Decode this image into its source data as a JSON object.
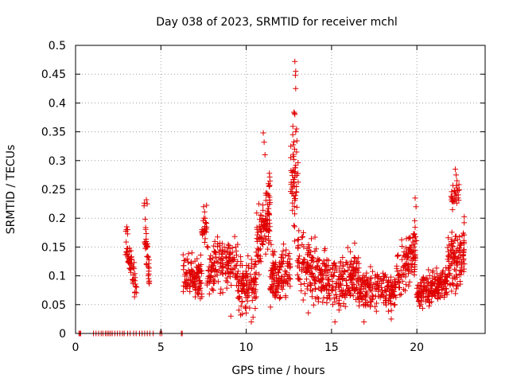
{
  "chart_data": {
    "type": "scatter",
    "title": "Day 038 of 2023, SRMTID for receiver mchl",
    "xlabel": "GPS time / hours",
    "ylabel": "SRMTID / TECUs",
    "xlim": [
      0,
      24
    ],
    "ylim": [
      0,
      0.5
    ],
    "xticks": [
      0,
      5,
      10,
      15,
      20
    ],
    "yticks": [
      0,
      0.05,
      0.1,
      0.15,
      0.2,
      0.25,
      0.3,
      0.35,
      0.4,
      0.45,
      0.5
    ],
    "xtick_labels": [
      "0",
      "5",
      "10",
      "15",
      "20"
    ],
    "ytick_labels": [
      "0",
      "0.05",
      "0.1",
      "0.15",
      "0.2",
      "0.25",
      "0.3",
      "0.35",
      "0.4",
      "0.45",
      "0.5"
    ],
    "grid": true,
    "marker": "+",
    "marker_color": "#e00000",
    "zero_points_x": [
      0.2,
      0.25,
      0.3,
      1.05,
      1.2,
      1.35,
      1.5,
      1.6,
      1.75,
      1.85,
      1.95,
      2.05,
      2.15,
      2.3,
      2.45,
      2.6,
      2.75,
      2.85,
      3.05,
      3.2,
      3.4,
      3.55,
      3.75,
      3.9,
      4.05,
      4.2,
      4.35,
      4.55,
      4.95,
      5.05,
      6.2,
      6.25
    ],
    "segments": [
      {
        "x": [
          2.9,
          3.6
        ],
        "baseline": [
          0.16,
          0.08
        ],
        "spread": 0.025,
        "n": 60
      },
      {
        "x": [
          4.0,
          4.35
        ],
        "baseline": [
          0.2,
          0.09
        ],
        "spread": 0.03,
        "n": 40
      },
      {
        "x": [
          6.3,
          7.4
        ],
        "baseline": [
          0.1,
          0.1
        ],
        "spread": 0.03,
        "n": 110
      },
      {
        "x": [
          7.4,
          7.7
        ],
        "baseline": [
          0.17,
          0.19
        ],
        "spread": 0.03,
        "n": 25
      },
      {
        "x": [
          7.7,
          9.5
        ],
        "baseline": [
          0.11,
          0.13
        ],
        "spread": 0.04,
        "n": 160
      },
      {
        "x": [
          9.5,
          10.6
        ],
        "baseline": [
          0.08,
          0.09
        ],
        "spread": 0.04,
        "n": 120
      },
      {
        "x": [
          10.6,
          11.4
        ],
        "baseline": [
          0.15,
          0.22
        ],
        "spread": 0.05,
        "n": 110
      },
      {
        "x": [
          11.4,
          12.6
        ],
        "baseline": [
          0.1,
          0.11
        ],
        "spread": 0.04,
        "n": 130
      },
      {
        "x": [
          12.6,
          13.05
        ],
        "baseline": [
          0.3,
          0.25
        ],
        "spread": 0.09,
        "n": 55
      },
      {
        "x": [
          13.0,
          14.8
        ],
        "baseline": [
          0.12,
          0.09
        ],
        "spread": 0.05,
        "n": 170
      },
      {
        "x": [
          14.8,
          16.6
        ],
        "baseline": [
          0.09,
          0.1
        ],
        "spread": 0.04,
        "n": 170
      },
      {
        "x": [
          16.6,
          18.8
        ],
        "baseline": [
          0.07,
          0.08
        ],
        "spread": 0.03,
        "n": 190
      },
      {
        "x": [
          18.8,
          20.0
        ],
        "baseline": [
          0.1,
          0.15
        ],
        "spread": 0.04,
        "n": 110
      },
      {
        "x": [
          20.0,
          21.8
        ],
        "baseline": [
          0.07,
          0.09
        ],
        "spread": 0.025,
        "n": 190
      },
      {
        "x": [
          21.8,
          22.8
        ],
        "baseline": [
          0.12,
          0.14
        ],
        "spread": 0.05,
        "n": 120
      },
      {
        "x": [
          22.0,
          22.5
        ],
        "baseline": [
          0.23,
          0.25
        ],
        "spread": 0.02,
        "n": 30
      }
    ],
    "peaks": [
      {
        "x": 3.0,
        "y": 0.185
      },
      {
        "x": 3.05,
        "y": 0.18
      },
      {
        "x": 4.15,
        "y": 0.232
      },
      {
        "x": 4.2,
        "y": 0.225
      },
      {
        "x": 7.5,
        "y": 0.22
      },
      {
        "x": 11.0,
        "y": 0.348
      },
      {
        "x": 11.05,
        "y": 0.332
      },
      {
        "x": 11.1,
        "y": 0.31
      },
      {
        "x": 11.3,
        "y": 0.26
      },
      {
        "x": 12.85,
        "y": 0.472
      },
      {
        "x": 12.9,
        "y": 0.455
      },
      {
        "x": 12.88,
        "y": 0.448
      },
      {
        "x": 12.9,
        "y": 0.425
      },
      {
        "x": 12.85,
        "y": 0.38
      },
      {
        "x": 12.95,
        "y": 0.355
      },
      {
        "x": 12.9,
        "y": 0.35
      },
      {
        "x": 12.95,
        "y": 0.315
      },
      {
        "x": 19.9,
        "y": 0.235
      },
      {
        "x": 19.95,
        "y": 0.22
      },
      {
        "x": 22.25,
        "y": 0.285
      },
      {
        "x": 22.3,
        "y": 0.275
      },
      {
        "x": 22.35,
        "y": 0.265
      }
    ],
    "lows": [
      {
        "x": 10.3,
        "y": 0.02
      },
      {
        "x": 10.4,
        "y": 0.028
      },
      {
        "x": 15.2,
        "y": 0.02
      },
      {
        "x": 16.9,
        "y": 0.02
      },
      {
        "x": 18.5,
        "y": 0.025
      },
      {
        "x": 9.1,
        "y": 0.03
      }
    ]
  }
}
